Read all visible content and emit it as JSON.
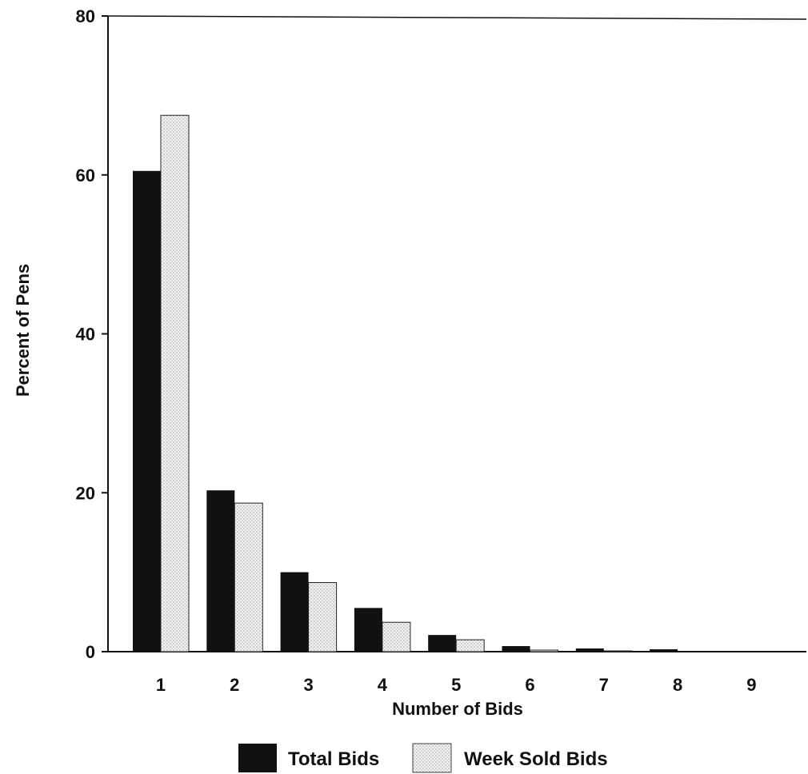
{
  "chart_data": {
    "type": "bar",
    "categories": [
      "1",
      "2",
      "3",
      "4",
      "5",
      "6",
      "7",
      "8",
      "9"
    ],
    "series": [
      {
        "name": "Total Bids",
        "color": "#111111",
        "pattern": "solid",
        "values": [
          60.5,
          20.3,
          10.0,
          5.5,
          2.1,
          0.7,
          0.4,
          0.3,
          0.1
        ]
      },
      {
        "name": "Week Sold Bids",
        "color": "#d9d9d9",
        "pattern": "dotted",
        "values": [
          67.5,
          18.7,
          8.7,
          3.7,
          1.5,
          0.2,
          0.1,
          0.0,
          0.0
        ]
      }
    ],
    "title": "",
    "xlabel": "Number of Bids",
    "ylabel": "Percent of Pens",
    "ylim": [
      0,
      80
    ],
    "yticks": [
      0,
      20,
      40,
      60,
      80
    ],
    "grid": false,
    "legend_position": "bottom-center"
  }
}
